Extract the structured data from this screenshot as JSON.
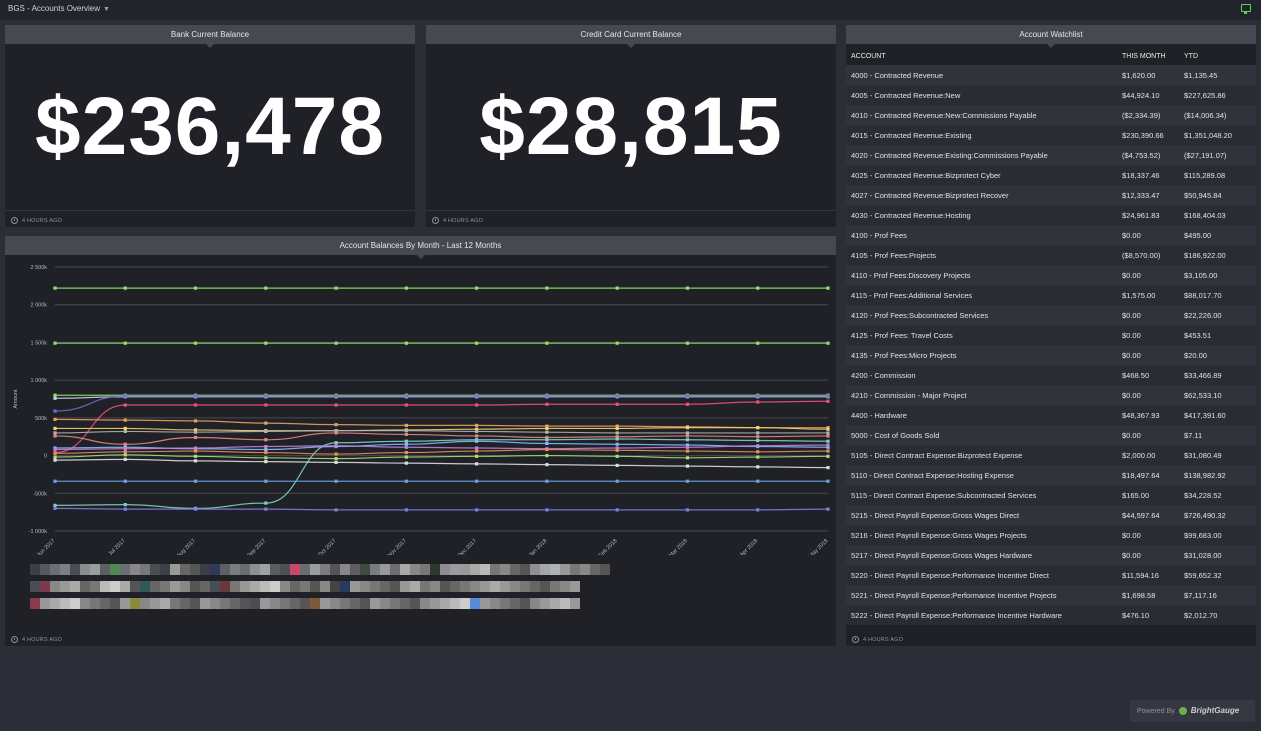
{
  "topbar": {
    "title": "BGS - Accounts Overview",
    "chevron_icon": "chevron-down-icon",
    "monitor_icon": "monitor-icon",
    "accent": "#5bd45b"
  },
  "bank": {
    "title": "Bank Current Balance",
    "value": "$236,478",
    "updated": "4 HOURS AGO"
  },
  "credit": {
    "title": "Credit Card Current Balance",
    "value": "$28,815",
    "updated": "4 HOURS AGO"
  },
  "watchlist": {
    "title": "Account Watchlist",
    "headers": {
      "account": "ACCOUNT",
      "this_month": "THIS MONTH",
      "ytd": "YTD"
    },
    "rows": [
      [
        "4000 - Contracted Revenue",
        "$1,620.00",
        "$1,135.45"
      ],
      [
        "4005 - Contracted Revenue:New",
        "$44,924.10",
        "$227,625.86"
      ],
      [
        "4010 - Contracted Revenue:New:Commissions Payable",
        "($2,334.39)",
        "($14,006.34)"
      ],
      [
        "4015 - Contracted Revenue:Existing",
        "$230,390.66",
        "$1,351,048.20"
      ],
      [
        "4020 - Contracted Revenue:Existing:Commissions Payable",
        "($4,753.52)",
        "($27,191.07)"
      ],
      [
        "4025 - Contracted Revenue:Bizprotect Cyber",
        "$18,337.46",
        "$115,289.08"
      ],
      [
        "4027 - Contracted Revenue:Bizprotect Recover",
        "$12,333.47",
        "$50,945.84"
      ],
      [
        "4030 - Contracted Revenue:Hosting",
        "$24,961.83",
        "$168,404.03"
      ],
      [
        "4100 - Prof Fees",
        "$0.00",
        "$495.00"
      ],
      [
        "4105 - Prof Fees:Projects",
        "($8,570.00)",
        "$186,922.00"
      ],
      [
        "4110 - Prof Fees:Discovery Projects",
        "$0.00",
        "$3,105.00"
      ],
      [
        "4115 - Prof Fees:Additional Services",
        "$1,575.00",
        "$88,017.70"
      ],
      [
        "4120 - Prof Fees:Subcontracted Services",
        "$0.00",
        "$22,226.00"
      ],
      [
        "4125 - Prof Fees: Travel Costs",
        "$0.00",
        "$453.51"
      ],
      [
        "4135 - Prof Fees:Micro Projects",
        "$0.00",
        "$20.00"
      ],
      [
        "4200 - Commission",
        "$468.50",
        "$33,466.89"
      ],
      [
        "4210 - Commission - Major Project",
        "$0.00",
        "$62,533.10"
      ],
      [
        "4400 - Hardware",
        "$48,367.93",
        "$417,391.60"
      ],
      [
        "5000 - Cost of Goods Sold",
        "$0.00",
        "$7.11"
      ],
      [
        "5105 - Direct Contract Expense:Bizprotect Expense",
        "$2,000.00",
        "$31,080.49"
      ],
      [
        "5110 - Direct Contract Expense:Hosting Expense",
        "$18,497.64",
        "$138,982.92"
      ],
      [
        "5115 - Direct Contract Expense:Subcontracted Services",
        "$165.00",
        "$34,228.52"
      ],
      [
        "5215 - Direct Payroll Expense:Gross Wages Direct",
        "$44,597.64",
        "$726,490.32"
      ],
      [
        "5216 - Direct Payroll Expense:Gross Wages Projects",
        "$0.00",
        "$99,683.00"
      ],
      [
        "5217 - Direct Payroll Expense:Gross Wages Hardware",
        "$0.00",
        "$31,028.00"
      ],
      [
        "5220 - Direct Payroll Expense:Performance Incentive Direct",
        "$11,594.16",
        "$59,652.32"
      ],
      [
        "5221 - Direct Payroll Expense:Performance Incentive Projects",
        "$1,698.58",
        "$7,117.16"
      ],
      [
        "5222 - Direct Payroll Expense:Performance Incentive Hardware",
        "$476.10",
        "$2,012.70"
      ]
    ],
    "updated": "4 HOURS AGO"
  },
  "chart_panel": {
    "title": "Account Balances By Month - Last 12 Months",
    "updated": "4 HOURS AGO"
  },
  "chart_data": {
    "type": "line",
    "title": "Account Balances By Month - Last 12 Months",
    "ylabel": "Amount",
    "ylim": [
      -1000000,
      2500000
    ],
    "yticks": [
      2500000,
      2000000,
      1500000,
      1000000,
      500000,
      0,
      -500000,
      -1000000
    ],
    "ytick_labels": [
      "2 500k",
      "2 000k",
      "1 500k",
      "1 000k",
      "500k",
      "0",
      "-500k",
      "-1 000k"
    ],
    "categories": [
      "Jun 2017",
      "Jul 2017",
      "Aug 2017",
      "Sep 2017",
      "Oct 2017",
      "Nov 2017",
      "Dec 2017",
      "Jan 2018",
      "Feb 2018",
      "Mar 2018",
      "Apr 2018",
      "May 2018"
    ],
    "grid": true,
    "legend": "bottom",
    "series": [
      {
        "color": "#8fe36a",
        "values": [
          2220000,
          2220000,
          2220000,
          2220000,
          2220000,
          2220000,
          2220000,
          2220000,
          2220000,
          2220000,
          2220000,
          2220000
        ]
      },
      {
        "color": "#8fe36a",
        "values": [
          1490000,
          1490000,
          1490000,
          1490000,
          1490000,
          1490000,
          1490000,
          1490000,
          1490000,
          1490000,
          1490000,
          1490000
        ]
      },
      {
        "color": "#8fe36a",
        "values": [
          800000,
          800000,
          800000,
          800000,
          800000,
          800000,
          800000,
          800000,
          800000,
          800000,
          800000,
          800000
        ]
      },
      {
        "color": "#c9d2e0",
        "values": [
          760000,
          780000,
          780000,
          780000,
          780000,
          780000,
          780000,
          780000,
          780000,
          780000,
          780000,
          780000
        ]
      },
      {
        "color": "#6a6fd6",
        "values": [
          590000,
          790000,
          790000,
          790000,
          790000,
          790000,
          790000,
          790000,
          790000,
          790000,
          790000,
          790000
        ]
      },
      {
        "color": "#f0507a",
        "values": [
          40000,
          670000,
          670000,
          670000,
          670000,
          670000,
          670000,
          680000,
          680000,
          680000,
          710000,
          720000
        ]
      },
      {
        "color": "#e8a062",
        "values": [
          480000,
          470000,
          460000,
          430000,
          410000,
          400000,
          400000,
          390000,
          390000,
          380000,
          370000,
          370000
        ]
      },
      {
        "color": "#f2d36a",
        "values": [
          360000,
          360000,
          340000,
          330000,
          330000,
          340000,
          350000,
          360000,
          360000,
          370000,
          370000,
          350000
        ]
      },
      {
        "color": "#b3b3b3",
        "values": [
          300000,
          320000,
          310000,
          320000,
          330000,
          330000,
          320000,
          310000,
          300000,
          300000,
          300000,
          300000
        ]
      },
      {
        "color": "#e58585",
        "values": [
          260000,
          150000,
          240000,
          210000,
          300000,
          280000,
          260000,
          240000,
          250000,
          260000,
          250000,
          260000
        ]
      },
      {
        "color": "#7cd1c2",
        "values": [
          -660000,
          -650000,
          -700000,
          -630000,
          170000,
          190000,
          210000,
          210000,
          220000,
          210000,
          200000,
          190000
        ]
      },
      {
        "color": "#8ab4ff",
        "values": [
          100000,
          110000,
          90000,
          80000,
          120000,
          150000,
          190000,
          160000,
          150000,
          140000,
          120000,
          110000
        ]
      },
      {
        "color": "#b784d6",
        "values": [
          80000,
          90000,
          100000,
          120000,
          130000,
          110000,
          100000,
          90000,
          100000,
          110000,
          130000,
          140000
        ]
      },
      {
        "color": "#f28b5a",
        "values": [
          30000,
          50000,
          60000,
          40000,
          20000,
          40000,
          60000,
          80000,
          70000,
          60000,
          50000,
          60000
        ]
      },
      {
        "color": "#a3e07a",
        "values": [
          -20000,
          10000,
          -10000,
          -30000,
          -40000,
          -20000,
          -10000,
          0,
          -10000,
          -30000,
          -20000,
          -10000
        ]
      },
      {
        "color": "#dddddd",
        "values": [
          -60000,
          -50000,
          -70000,
          -80000,
          -90000,
          -100000,
          -110000,
          -120000,
          -130000,
          -140000,
          -150000,
          -160000
        ]
      },
      {
        "color": "#6aa0e8",
        "values": [
          -340000,
          -340000,
          -340000,
          -340000,
          -340000,
          -340000,
          -340000,
          -340000,
          -340000,
          -340000,
          -340000,
          -340000
        ]
      },
      {
        "color": "#7b7fe0",
        "values": [
          -700000,
          -710000,
          -710000,
          -710000,
          -720000,
          -720000,
          -720000,
          -720000,
          -720000,
          -720000,
          -720000,
          -710000
        ]
      }
    ]
  },
  "legend_rows": [
    [
      "#3a4048",
      "#55595f",
      "#6b6e74",
      "#7d7f85",
      "#4a4d53",
      "#8a8c90",
      "#9a9ca0",
      "#5c5f64",
      "#4e8a4e",
      "#6b6e73",
      "#888",
      "#777",
      "#4a4d52",
      "#3d4046",
      "#999",
      "#666",
      "#555",
      "#3b3e44",
      "#2f3a5a",
      "#5e6066",
      "#7a7c80",
      "#6a6c70",
      "#8e8f93",
      "#a0a1a5",
      "#5a5c60",
      "#4d4f54",
      "#c84a6a",
      "#6a6c70",
      "#9a9ca0",
      "#7b7d81",
      "#555",
      "#888",
      "#5c5e62",
      "#3e4b3e",
      "#7a7c80",
      "#999",
      "#6b6d71",
      "#aaa",
      "#888",
      "#777",
      "#2b3a2b",
      "#8c8e92",
      "#9a9ca0",
      "#999",
      "#aaa",
      "#bbb",
      "#777",
      "#888",
      "#666",
      "#555",
      "#8f9094",
      "#a5a6aa",
      "#b0b1b5",
      "#999",
      "#777",
      "#888",
      "#666",
      "#555"
    ],
    [
      "#4a4d53",
      "#7a3a4a",
      "#888",
      "#999",
      "#aaa",
      "#666",
      "#777",
      "#bbb",
      "#ccc",
      "#aaa",
      "#555",
      "#2e5a5a",
      "#666",
      "#777",
      "#999",
      "#888",
      "#555",
      "#666",
      "#4a4d53",
      "#6a3a3a",
      "#777",
      "#999",
      "#aaa",
      "#bbb",
      "#ccc",
      "#888",
      "#666",
      "#777",
      "#555",
      "#888",
      "#444",
      "#2a3a5a",
      "#999",
      "#888",
      "#777",
      "#666",
      "#555",
      "#999",
      "#aaa",
      "#777",
      "#888",
      "#555",
      "#666",
      "#777",
      "#888",
      "#999",
      "#aaa",
      "#999",
      "#888",
      "#777",
      "#666",
      "#555",
      "#777",
      "#888",
      "#999"
    ],
    [
      "#8a3a4a",
      "#999",
      "#aaa",
      "#bbb",
      "#ccc",
      "#888",
      "#777",
      "#666",
      "#555",
      "#999",
      "#8a8a3a",
      "#888",
      "#999",
      "#aaa",
      "#777",
      "#666",
      "#555",
      "#999",
      "#888",
      "#777",
      "#666",
      "#555",
      "#4a4d53",
      "#999",
      "#888",
      "#777",
      "#666",
      "#555",
      "#7a5a3a",
      "#999",
      "#888",
      "#777",
      "#666",
      "#555",
      "#999",
      "#888",
      "#777",
      "#666",
      "#555",
      "#888",
      "#999",
      "#aaa",
      "#bbb",
      "#ccc",
      "#5a8ad6",
      "#999",
      "#888",
      "#777",
      "#666",
      "#555",
      "#888",
      "#999",
      "#aaa",
      "#bbb",
      "#999"
    ]
  ],
  "powered": {
    "label": "Powered By",
    "brand": "BrightGauge"
  }
}
